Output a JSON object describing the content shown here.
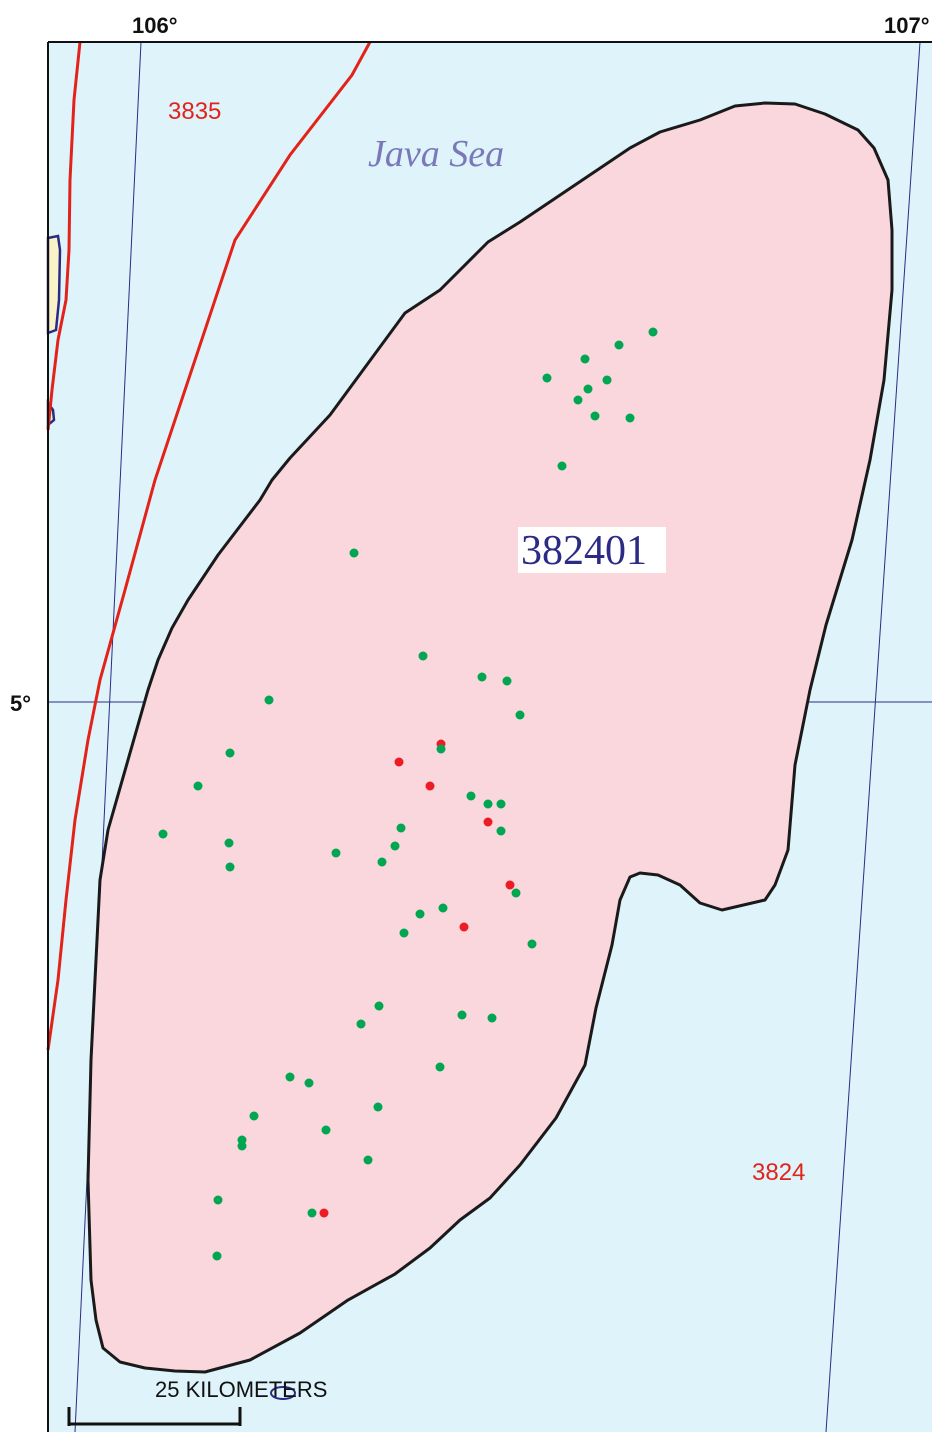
{
  "map": {
    "lon_labels": [
      "106°",
      "107°"
    ],
    "lat_labels": [
      "5°"
    ],
    "water_label": "Java Sea",
    "province_labels": [
      "3835",
      "3824"
    ],
    "assessment_unit_label": "382401",
    "scale_bar_label": "25 KILOMETERS"
  },
  "colors": {
    "sea": "#dff3fa",
    "assessment_unit_fill": "#f9d7dc",
    "assessment_unit_outline": "#1a1a1a",
    "province_boundary": "#e2231a",
    "graticule": "#2b2b86",
    "land": "#fbf3c8",
    "well_green": "#00a651",
    "well_red": "#ed1c24"
  },
  "legend_symbols": {
    "green_points": "well-green-dot",
    "red_points": "well-red-dot"
  }
}
